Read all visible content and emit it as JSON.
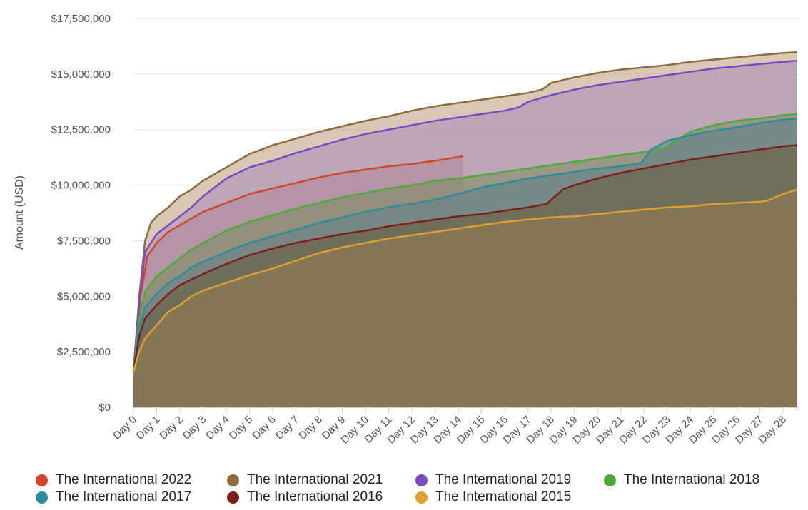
{
  "chart_data": {
    "type": "area",
    "title": "",
    "xlabel": "",
    "ylabel": "Amount (USD)",
    "ylim": [
      0,
      17500000
    ],
    "yticks": [
      "$0",
      "$2,500,000",
      "$5,000,000",
      "$7,500,000",
      "$10,000,000",
      "$12,500,000",
      "$15,000,000",
      "$17,500,000"
    ],
    "ytick_values": [
      0,
      2500000,
      5000000,
      7500000,
      10000000,
      12500000,
      15000000,
      17500000
    ],
    "categories": [
      "Day 0",
      "Day 1",
      "Day 2",
      "Day 3",
      "Day 4",
      "Day 5",
      "Day 6",
      "Day 7",
      "Day 8",
      "Day 9",
      "Day 10",
      "Day 11",
      "Day 12",
      "Day 13",
      "Day 14",
      "Day 15",
      "Day 16",
      "Day 17",
      "Day 18",
      "Day 19",
      "Day 20",
      "Day 21",
      "Day 22",
      "Day 23",
      "Day 24",
      "Day 25",
      "Day 26",
      "Day 27",
      "Day 28"
    ],
    "xlim": [
      0,
      28.7
    ],
    "grid": true,
    "legend_position": "bottom",
    "series": [
      {
        "name": "The International 2022",
        "color": "#d4432c",
        "fill": "#c05a70",
        "opacity": 0.55,
        "points": [
          [
            0,
            1600000
          ],
          [
            0.3,
            5000000
          ],
          [
            0.6,
            6800000
          ],
          [
            1,
            7400000
          ],
          [
            1.5,
            7900000
          ],
          [
            2,
            8200000
          ],
          [
            2.5,
            8500000
          ],
          [
            3,
            8800000
          ],
          [
            4,
            9200000
          ],
          [
            5,
            9600000
          ],
          [
            6,
            9850000
          ],
          [
            7,
            10100000
          ],
          [
            8,
            10350000
          ],
          [
            9,
            10550000
          ],
          [
            10,
            10700000
          ],
          [
            11,
            10850000
          ],
          [
            12,
            10950000
          ],
          [
            13,
            11100000
          ],
          [
            14.2,
            11300000
          ]
        ]
      },
      {
        "name": "The International 2021",
        "color": "#8e6b3a",
        "fill": "#b89a78",
        "opacity": 0.55,
        "points": [
          [
            0,
            1600000
          ],
          [
            0.25,
            5000000
          ],
          [
            0.5,
            7500000
          ],
          [
            0.75,
            8300000
          ],
          [
            1,
            8600000
          ],
          [
            1.5,
            9000000
          ],
          [
            2,
            9500000
          ],
          [
            2.5,
            9800000
          ],
          [
            3,
            10200000
          ],
          [
            3.5,
            10500000
          ],
          [
            4,
            10800000
          ],
          [
            5,
            11400000
          ],
          [
            6,
            11800000
          ],
          [
            7,
            12100000
          ],
          [
            8,
            12400000
          ],
          [
            9,
            12650000
          ],
          [
            10,
            12900000
          ],
          [
            11,
            13100000
          ],
          [
            12,
            13350000
          ],
          [
            13,
            13550000
          ],
          [
            14,
            13700000
          ],
          [
            15,
            13850000
          ],
          [
            16,
            14000000
          ],
          [
            17,
            14150000
          ],
          [
            17.6,
            14300000
          ],
          [
            18,
            14600000
          ],
          [
            19,
            14850000
          ],
          [
            20,
            15050000
          ],
          [
            21,
            15200000
          ],
          [
            22,
            15300000
          ],
          [
            23,
            15400000
          ],
          [
            24,
            15550000
          ],
          [
            25,
            15650000
          ],
          [
            26,
            15750000
          ],
          [
            27,
            15850000
          ],
          [
            28,
            15950000
          ],
          [
            28.6,
            15980000
          ]
        ]
      },
      {
        "name": "The International 2019",
        "color": "#7a4ac2",
        "fill": "#a58ab8",
        "opacity": 0.55,
        "points": [
          [
            0,
            1600000
          ],
          [
            0.25,
            4800000
          ],
          [
            0.5,
            7000000
          ],
          [
            0.75,
            7400000
          ],
          [
            1,
            7800000
          ],
          [
            1.5,
            8200000
          ],
          [
            2,
            8600000
          ],
          [
            2.5,
            9000000
          ],
          [
            3,
            9500000
          ],
          [
            3.5,
            9900000
          ],
          [
            4,
            10300000
          ],
          [
            5,
            10800000
          ],
          [
            6,
            11100000
          ],
          [
            7,
            11450000
          ],
          [
            8,
            11750000
          ],
          [
            9,
            12050000
          ],
          [
            10,
            12300000
          ],
          [
            11,
            12500000
          ],
          [
            12,
            12700000
          ],
          [
            13,
            12900000
          ],
          [
            14,
            13050000
          ],
          [
            15,
            13200000
          ],
          [
            16,
            13350000
          ],
          [
            16.6,
            13500000
          ],
          [
            17,
            13750000
          ],
          [
            18,
            14050000
          ],
          [
            19,
            14300000
          ],
          [
            20,
            14500000
          ],
          [
            21,
            14650000
          ],
          [
            22,
            14800000
          ],
          [
            23,
            14950000
          ],
          [
            24,
            15100000
          ],
          [
            25,
            15250000
          ],
          [
            26,
            15350000
          ],
          [
            27,
            15450000
          ],
          [
            28,
            15550000
          ],
          [
            28.6,
            15600000
          ]
        ]
      },
      {
        "name": "The International 2018",
        "color": "#4caa38",
        "fill": "#7a8c5c",
        "opacity": 0.55,
        "points": [
          [
            0,
            1600000
          ],
          [
            0.25,
            4000000
          ],
          [
            0.5,
            5200000
          ],
          [
            1,
            5900000
          ],
          [
            1.5,
            6300000
          ],
          [
            2,
            6700000
          ],
          [
            2.5,
            7100000
          ],
          [
            3,
            7400000
          ],
          [
            4,
            7950000
          ],
          [
            5,
            8350000
          ],
          [
            6,
            8650000
          ],
          [
            7,
            8950000
          ],
          [
            8,
            9200000
          ],
          [
            9,
            9450000
          ],
          [
            10,
            9650000
          ],
          [
            11,
            9850000
          ],
          [
            12,
            10000000
          ],
          [
            13,
            10200000
          ],
          [
            14,
            10300000
          ],
          [
            15,
            10450000
          ],
          [
            16,
            10600000
          ],
          [
            17,
            10750000
          ],
          [
            18,
            10900000
          ],
          [
            19,
            11050000
          ],
          [
            20,
            11200000
          ],
          [
            21,
            11350000
          ],
          [
            22,
            11500000
          ],
          [
            22.9,
            11650000
          ],
          [
            23.5,
            12100000
          ],
          [
            24,
            12400000
          ],
          [
            25,
            12700000
          ],
          [
            26,
            12900000
          ],
          [
            27,
            13000000
          ],
          [
            28,
            13150000
          ],
          [
            28.6,
            13200000
          ]
        ]
      },
      {
        "name": "The International 2017",
        "color": "#2c8c98",
        "fill": "#5e8088",
        "opacity": 0.55,
        "points": [
          [
            0,
            1600000
          ],
          [
            0.25,
            3600000
          ],
          [
            0.5,
            4500000
          ],
          [
            1,
            5100000
          ],
          [
            1.5,
            5600000
          ],
          [
            2,
            5900000
          ],
          [
            2.5,
            6300000
          ],
          [
            3,
            6550000
          ],
          [
            4,
            7000000
          ],
          [
            5,
            7400000
          ],
          [
            6,
            7700000
          ],
          [
            7,
            8000000
          ],
          [
            8,
            8300000
          ],
          [
            9,
            8550000
          ],
          [
            10,
            8800000
          ],
          [
            11,
            9000000
          ],
          [
            12,
            9150000
          ],
          [
            13,
            9350000
          ],
          [
            14,
            9600000
          ],
          [
            14.5,
            9750000
          ],
          [
            15,
            9900000
          ],
          [
            16,
            10100000
          ],
          [
            17,
            10300000
          ],
          [
            18,
            10450000
          ],
          [
            19,
            10600000
          ],
          [
            20,
            10750000
          ],
          [
            21,
            10850000
          ],
          [
            21.9,
            11000000
          ],
          [
            22.3,
            11600000
          ],
          [
            23,
            12000000
          ],
          [
            24,
            12250000
          ],
          [
            25,
            12450000
          ],
          [
            26,
            12600000
          ],
          [
            27,
            12800000
          ],
          [
            28,
            12950000
          ],
          [
            28.6,
            13000000
          ]
        ]
      },
      {
        "name": "The International 2016",
        "color": "#7a1e1e",
        "fill": "#6a5a3a",
        "opacity": 0.55,
        "points": [
          [
            0,
            1600000
          ],
          [
            0.25,
            3200000
          ],
          [
            0.5,
            4000000
          ],
          [
            1,
            4600000
          ],
          [
            1.5,
            5100000
          ],
          [
            2,
            5500000
          ],
          [
            2.5,
            5750000
          ],
          [
            3,
            6000000
          ],
          [
            4,
            6450000
          ],
          [
            5,
            6850000
          ],
          [
            6,
            7150000
          ],
          [
            7,
            7400000
          ],
          [
            8,
            7600000
          ],
          [
            9,
            7800000
          ],
          [
            10,
            7950000
          ],
          [
            11,
            8150000
          ],
          [
            12,
            8300000
          ],
          [
            13,
            8450000
          ],
          [
            14,
            8600000
          ],
          [
            15,
            8700000
          ],
          [
            16,
            8850000
          ],
          [
            17,
            9000000
          ],
          [
            17.8,
            9150000
          ],
          [
            18.5,
            9800000
          ],
          [
            19,
            10000000
          ],
          [
            20,
            10300000
          ],
          [
            21,
            10550000
          ],
          [
            22,
            10750000
          ],
          [
            23,
            10950000
          ],
          [
            24,
            11150000
          ],
          [
            25,
            11300000
          ],
          [
            26,
            11450000
          ],
          [
            27,
            11600000
          ],
          [
            28,
            11750000
          ],
          [
            28.6,
            11800000
          ]
        ]
      },
      {
        "name": "The International 2015",
        "color": "#e0a030",
        "fill": "#8c7a52",
        "opacity": 0.7,
        "points": [
          [
            0,
            1600000
          ],
          [
            0.25,
            2500000
          ],
          [
            0.5,
            3100000
          ],
          [
            1,
            3700000
          ],
          [
            1.5,
            4300000
          ],
          [
            2,
            4600000
          ],
          [
            2.5,
            5000000
          ],
          [
            3,
            5250000
          ],
          [
            4,
            5600000
          ],
          [
            5,
            5950000
          ],
          [
            6,
            6250000
          ],
          [
            7,
            6600000
          ],
          [
            8,
            6950000
          ],
          [
            9,
            7200000
          ],
          [
            10,
            7400000
          ],
          [
            11,
            7600000
          ],
          [
            12,
            7750000
          ],
          [
            13,
            7900000
          ],
          [
            14,
            8050000
          ],
          [
            15,
            8200000
          ],
          [
            16,
            8350000
          ],
          [
            17,
            8450000
          ],
          [
            18,
            8550000
          ],
          [
            19,
            8600000
          ],
          [
            20,
            8700000
          ],
          [
            21,
            8800000
          ],
          [
            22,
            8900000
          ],
          [
            23,
            9000000
          ],
          [
            24,
            9050000
          ],
          [
            25,
            9150000
          ],
          [
            26,
            9200000
          ],
          [
            27,
            9250000
          ],
          [
            27.3,
            9300000
          ],
          [
            28,
            9600000
          ],
          [
            28.6,
            9800000
          ]
        ]
      }
    ]
  }
}
